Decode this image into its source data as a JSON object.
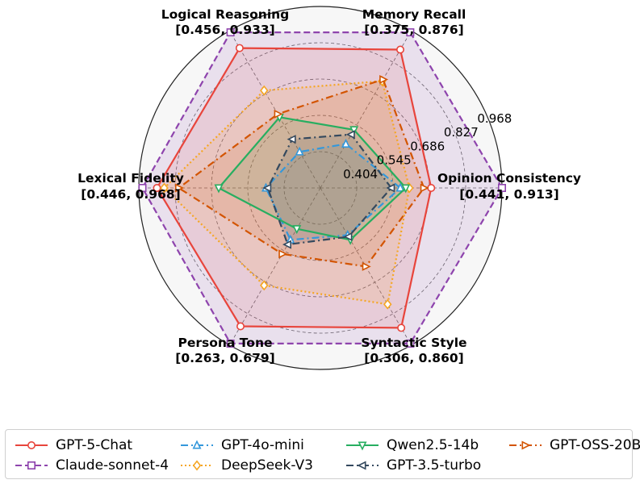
{
  "chart_data": {
    "type": "radar",
    "axes": [
      {
        "name": "Opinion Consistency",
        "range_label": "[0.441, 0.913]",
        "min": 0.441,
        "max": 0.913
      },
      {
        "name": "Memory Recall",
        "range_label": "[0.375, 0.876]",
        "min": 0.375,
        "max": 0.876
      },
      {
        "name": "Logical Reasoning",
        "range_label": "[0.456, 0.933]",
        "min": 0.456,
        "max": 0.933
      },
      {
        "name": "Lexical Fidelity",
        "range_label": "[0.446, 0.968]",
        "min": 0.446,
        "max": 0.968
      },
      {
        "name": "Persona Tone",
        "range_label": "[0.263, 0.679]",
        "min": 0.263,
        "max": 0.679
      },
      {
        "name": "Syntactic Style",
        "range_label": "[0.306, 0.860]",
        "min": 0.306,
        "max": 0.86
      }
    ],
    "radial_ticks": [
      "0.404",
      "0.545",
      "0.686",
      "0.827",
      "0.968"
    ],
    "grid": true,
    "legend_position": "bottom",
    "series": [
      {
        "name": "GPT-5-Chat",
        "color": "#e8453c",
        "linestyle": "solid",
        "marker": "circle",
        "values": [
          0.61,
          0.88,
          0.89,
          0.9,
          0.88,
          0.89
        ]
      },
      {
        "name": "Claude-sonnet-4",
        "color": "#8e44ad",
        "linestyle": "dashed",
        "marker": "square",
        "values": [
          1.0,
          0.99,
          0.99,
          0.98,
          0.99,
          0.99
        ]
      },
      {
        "name": "GPT-4o-mini",
        "color": "#3498db",
        "linestyle": "dashdot",
        "marker": "triangle-up",
        "values": [
          0.44,
          0.28,
          0.23,
          0.3,
          0.33,
          0.3
        ]
      },
      {
        "name": "DeepSeek-V3",
        "color": "#f5a623",
        "linestyle": "dotted",
        "marker": "diamond",
        "values": [
          0.49,
          0.68,
          0.62,
          0.86,
          0.62,
          0.74
        ]
      },
      {
        "name": "Qwen2.5-14b",
        "color": "#27ae60",
        "linestyle": "solid",
        "marker": "triangle-down",
        "values": [
          0.47,
          0.37,
          0.45,
          0.56,
          0.26,
          0.33
        ]
      },
      {
        "name": "GPT-3.5-turbo",
        "color": "#34495e",
        "linestyle": "dashdot",
        "marker": "triangle-left",
        "values": [
          0.39,
          0.34,
          0.31,
          0.29,
          0.36,
          0.31
        ]
      },
      {
        "name": "GPT-OSS-20B",
        "color": "#d35400",
        "linestyle": "dashdot",
        "marker": "triangle-right",
        "values": [
          0.57,
          0.69,
          0.47,
          0.78,
          0.42,
          0.5
        ]
      }
    ]
  }
}
